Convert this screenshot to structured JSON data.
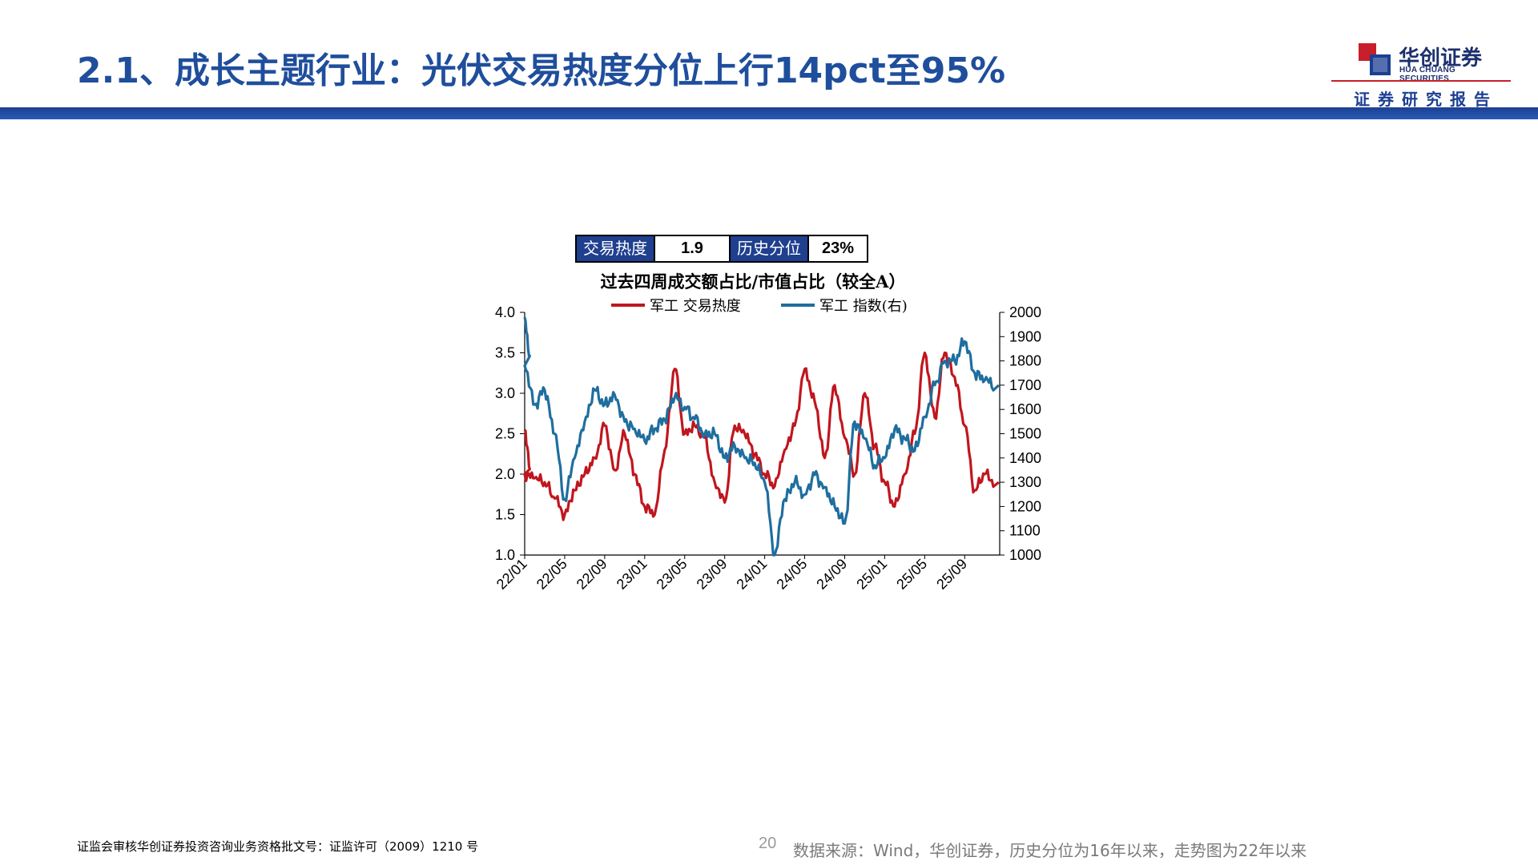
{
  "slide": {
    "title": "2.1、成长主题行业：光伏交易热度分位上行14pct至95%",
    "brand_cn": "华创证券",
    "brand_en": "HUA CHUANG SECURITIES",
    "report_label": "证券研究报告",
    "page_number": "20",
    "footer_license": "证监会审核华创证券投资咨询业务资格批文号：证监许可（2009）1210 号",
    "source_note": "数据来源：Wind，华创证券，历史分位为16年以来，走势图为22年以来"
  },
  "info_table": {
    "heat_label": "交易热度",
    "heat_value": "1.9",
    "percentile_label": "历史分位",
    "percentile_value": "23%"
  },
  "colors": {
    "heat_line": "#c0161e",
    "index_line": "#1f6e9e",
    "title_blue": "#1f4e9c",
    "table_header": "#1f3f8f"
  },
  "chart_data": {
    "type": "line",
    "title": "过去四周成交额占比/市值占比（较全A）",
    "legend_position": "top",
    "grid": false,
    "x_tick_labels": [
      "22/01",
      "22/05",
      "22/09",
      "23/01",
      "23/05",
      "23/09",
      "24/01",
      "24/05",
      "24/09",
      "25/01",
      "25/05",
      "25/09"
    ],
    "x_range": [
      "2022-01",
      "2025-12"
    ],
    "y_left": {
      "min": 1.0,
      "max": 4.0,
      "ticks": [
        "1.0",
        "1.5",
        "2.0",
        "2.5",
        "3.0",
        "3.5",
        "4.0"
      ]
    },
    "y_right": {
      "min": 1000,
      "max": 2000,
      "ticks": [
        "1000",
        "1100",
        "1200",
        "1300",
        "1400",
        "1500",
        "1600",
        "1700",
        "1800",
        "1900",
        "2000"
      ]
    },
    "series": [
      {
        "name": "军工 交易热度",
        "axis": "left",
        "x": [
          "2022-01",
          "2022-01",
          "2022-02",
          "2022-03",
          "2022-04",
          "2022-05",
          "2022-06",
          "2022-07",
          "2022-08",
          "2022-09",
          "2022-10",
          "2022-11",
          "2022-12",
          "2023-01",
          "2023-02",
          "2023-03",
          "2023-04",
          "2023-05",
          "2023-06",
          "2023-07",
          "2023-08",
          "2023-09",
          "2023-10",
          "2023-11",
          "2023-12",
          "2024-01",
          "2024-02",
          "2024-03",
          "2024-04",
          "2024-05",
          "2024-06",
          "2024-07",
          "2024-08",
          "2024-09",
          "2024-10",
          "2024-11",
          "2024-12",
          "2025-01",
          "2025-02",
          "2025-03",
          "2025-04",
          "2025-05",
          "2025-06",
          "2025-07",
          "2025-08",
          "2025-09",
          "2025-10",
          "2025-11",
          "2025-12"
        ],
        "values": [
          2.55,
          2.0,
          1.95,
          1.9,
          1.7,
          1.5,
          1.8,
          2.0,
          2.2,
          2.6,
          2.05,
          2.5,
          2.0,
          1.6,
          1.5,
          2.3,
          3.3,
          2.5,
          2.6,
          2.45,
          1.9,
          1.65,
          2.6,
          2.5,
          2.25,
          2.0,
          1.85,
          2.3,
          2.6,
          3.3,
          2.9,
          2.2,
          3.1,
          2.45,
          2.0,
          3.0,
          2.35,
          1.9,
          1.6,
          2.0,
          2.5,
          3.5,
          2.7,
          3.5,
          3.2,
          2.6,
          1.8,
          2.0,
          1.9
        ],
        "color": "#c0161e"
      },
      {
        "name": "军工 指数(右)",
        "axis": "right",
        "x": [
          "2022-01",
          "2022-01",
          "2022-02",
          "2022-03",
          "2022-04",
          "2022-05",
          "2022-06",
          "2022-07",
          "2022-08",
          "2022-09",
          "2022-10",
          "2022-11",
          "2022-12",
          "2023-01",
          "2023-02",
          "2023-03",
          "2023-04",
          "2023-05",
          "2023-06",
          "2023-07",
          "2023-08",
          "2023-09",
          "2023-10",
          "2023-11",
          "2023-12",
          "2024-01",
          "2024-02",
          "2024-03",
          "2024-04",
          "2024-05",
          "2024-06",
          "2024-07",
          "2024-08",
          "2024-09",
          "2024-10",
          "2024-11",
          "2024-12",
          "2025-01",
          "2025-02",
          "2025-03",
          "2025-04",
          "2025-05",
          "2025-06",
          "2025-07",
          "2025-08",
          "2025-09",
          "2025-10",
          "2025-11",
          "2025-12"
        ],
        "values": [
          1980,
          1780,
          1620,
          1680,
          1500,
          1230,
          1400,
          1550,
          1680,
          1620,
          1660,
          1550,
          1520,
          1470,
          1520,
          1560,
          1650,
          1610,
          1560,
          1500,
          1500,
          1400,
          1450,
          1400,
          1380,
          1300,
          1000,
          1230,
          1300,
          1250,
          1330,
          1280,
          1200,
          1130,
          1550,
          1480,
          1370,
          1400,
          1520,
          1480,
          1430,
          1570,
          1700,
          1800,
          1800,
          1880,
          1750,
          1720,
          1700
        ],
        "color": "#1f6e9e"
      }
    ]
  }
}
